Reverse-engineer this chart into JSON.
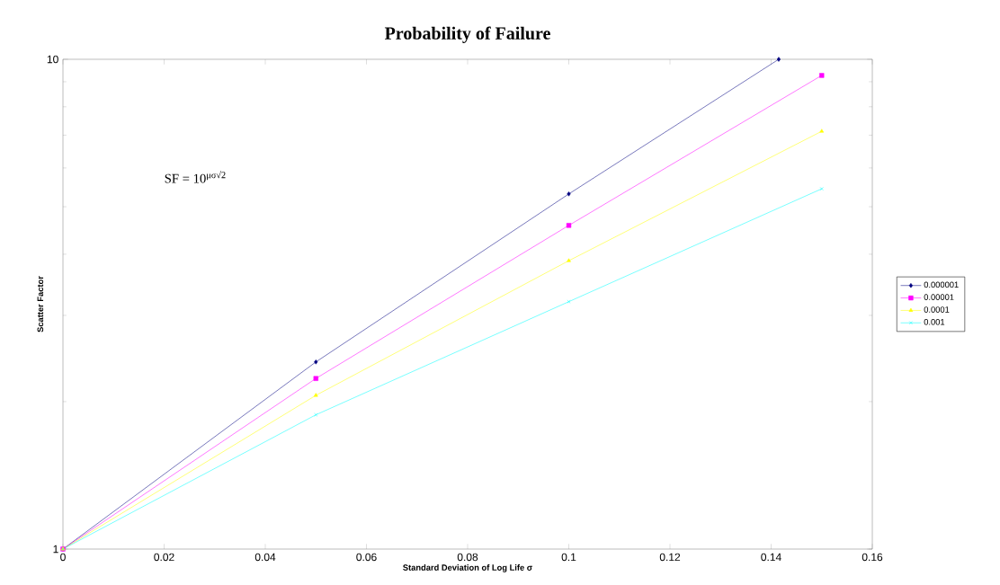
{
  "chart_data": {
    "type": "line",
    "title": "Probability of Failure",
    "xlabel": "Standard Deviation of Log Life σ",
    "ylabel": "Scatter Factor",
    "annotations": [
      "SF = 10$^{μσ√2}$"
    ],
    "log": "y",
    "xlim": [
      0,
      0.16
    ],
    "ylim": [
      1,
      10
    ],
    "xticks": [
      0,
      0.02,
      0.04,
      0.06,
      0.08,
      0.1,
      0.12,
      0.14,
      0.16
    ],
    "yticks": [
      1,
      10
    ],
    "legend": "right",
    "grid": false,
    "line_style": "solid",
    "series": [
      {
        "name": "0.000001",
        "color": "#000080",
        "marker": "diamond",
        "x": [
          0,
          0.05,
          0.1,
          0.1415
        ],
        "values": [
          1,
          2.41,
          5.31,
          10
        ]
      },
      {
        "name": "0.00001",
        "color": "#ff00ff",
        "marker": "square",
        "x": [
          0,
          0.05,
          0.1,
          0.15
        ],
        "values": [
          1,
          2.23,
          4.58,
          9.27
        ]
      },
      {
        "name": "0.0001",
        "color": "#ffff00",
        "marker": "triangle",
        "x": [
          0,
          0.05,
          0.1,
          0.15
        ],
        "values": [
          1,
          2.06,
          3.88,
          7.13
        ]
      },
      {
        "name": "0.001",
        "color": "#00ffff",
        "marker": "cross",
        "x": [
          0,
          0.05,
          0.1,
          0.15
        ],
        "values": [
          1,
          1.88,
          3.2,
          5.44
        ]
      }
    ]
  }
}
